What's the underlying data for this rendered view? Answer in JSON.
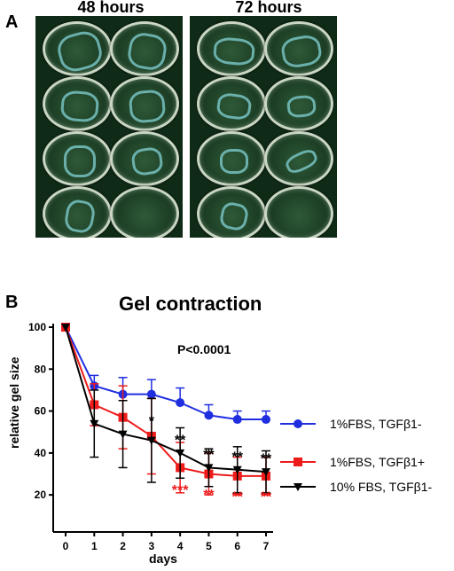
{
  "panel_a": {
    "letter": "A",
    "titles": [
      "48 hours",
      "72 hours"
    ]
  },
  "panel_b": {
    "letter": "B",
    "p_value": "P<0.0001"
  },
  "chart_data": {
    "type": "line",
    "title": "Gel contraction",
    "xlabel": "days",
    "ylabel": "relative gel size",
    "x": [
      0,
      1,
      2,
      3,
      4,
      5,
      6,
      7
    ],
    "xlim": [
      0,
      7
    ],
    "ylim": [
      15,
      100
    ],
    "yticks": [
      20,
      40,
      60,
      80,
      100
    ],
    "legend_position": "right",
    "series": [
      {
        "name": "1%FBS, TGFβ1-",
        "color": "#1f2fe0",
        "marker": "circle",
        "values": [
          100,
          72,
          68,
          68,
          64,
          58,
          56,
          56
        ],
        "errors": [
          0,
          5,
          8,
          7,
          7,
          5,
          4,
          4
        ]
      },
      {
        "name": "1%FBS, TGFβ1+",
        "color": "#ee1b1b",
        "marker": "square",
        "values": [
          100,
          63,
          57,
          48,
          33,
          30,
          29,
          29
        ],
        "errors": [
          0,
          10,
          15,
          18,
          12,
          10,
          9,
          9
        ]
      },
      {
        "name": "10% FBS, TGFβ1-",
        "color": "#000000",
        "marker": "triangle-down",
        "values": [
          100,
          54,
          49,
          46,
          40,
          33,
          32,
          31
        ],
        "errors": [
          0,
          16,
          16,
          20,
          12,
          9,
          11,
          10
        ]
      }
    ],
    "annotations": [
      {
        "x": 3,
        "y": 53,
        "text": "*",
        "color": "#000000"
      },
      {
        "x": 4,
        "y": 44,
        "text": "**",
        "color": "#000000"
      },
      {
        "x": 5,
        "y": 37,
        "text": "**",
        "color": "#000000"
      },
      {
        "x": 6,
        "y": 36,
        "text": "**",
        "color": "#000000"
      },
      {
        "x": 7,
        "y": 35,
        "text": "**",
        "color": "#000000"
      },
      {
        "x": 4,
        "y": 20,
        "text": "***",
        "color": "#ee1b1b"
      },
      {
        "x": 5,
        "y": 18,
        "text": "**",
        "color": "#ee1b1b"
      },
      {
        "x": 6,
        "y": 17,
        "text": "**",
        "color": "#ee1b1b"
      },
      {
        "x": 7,
        "y": 17,
        "text": "**",
        "color": "#ee1b1b"
      }
    ]
  }
}
